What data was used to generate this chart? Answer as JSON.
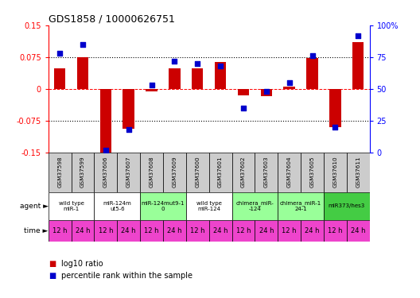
{
  "title": "GDS1858 / 10000626751",
  "samples": [
    "GSM37598",
    "GSM37599",
    "GSM37606",
    "GSM37607",
    "GSM37608",
    "GSM37609",
    "GSM37600",
    "GSM37601",
    "GSM37602",
    "GSM37603",
    "GSM37604",
    "GSM37605",
    "GSM37610",
    "GSM37611"
  ],
  "log10_ratio": [
    0.048,
    0.075,
    -0.155,
    -0.095,
    -0.005,
    0.048,
    0.048,
    0.063,
    -0.015,
    -0.018,
    0.005,
    0.072,
    -0.09,
    0.11
  ],
  "percentile_rank": [
    78,
    85,
    2,
    18,
    53,
    72,
    70,
    68,
    35,
    48,
    55,
    76,
    20,
    92
  ],
  "agent_groups": [
    {
      "label": "wild type\nmiR-1",
      "start": 0,
      "end": 2,
      "color": "#ffffff"
    },
    {
      "label": "miR-124m\nut5-6",
      "start": 2,
      "end": 4,
      "color": "#ffffff"
    },
    {
      "label": "miR-124mut9-1\n0",
      "start": 4,
      "end": 6,
      "color": "#99ff99"
    },
    {
      "label": "wild type\nmiR-124",
      "start": 6,
      "end": 8,
      "color": "#ffffff"
    },
    {
      "label": "chimera_miR-\n-124",
      "start": 8,
      "end": 10,
      "color": "#99ff99"
    },
    {
      "label": "chimera_miR-1\n24-1",
      "start": 10,
      "end": 12,
      "color": "#99ff99"
    },
    {
      "label": "miR373/hes3",
      "start": 12,
      "end": 14,
      "color": "#44cc44"
    }
  ],
  "bar_color": "#cc0000",
  "dot_color": "#0000cc",
  "ylim_left": [
    -0.15,
    0.15
  ],
  "ylim_right": [
    0,
    100
  ],
  "yticks_left": [
    -0.15,
    -0.075,
    0,
    0.075,
    0.15
  ],
  "yticks_right": [
    0,
    25,
    50,
    75,
    100
  ],
  "ytick_labels_left": [
    "-0.15",
    "-0.075",
    "0",
    "0.075",
    "0.15"
  ],
  "ytick_labels_right": [
    "0",
    "25",
    "50",
    "75",
    "100%"
  ],
  "dotted_lines": [
    -0.075,
    0,
    0.075
  ],
  "background_color": "#ffffff",
  "agent_row_bg": "#cccccc",
  "time_row_bg": "#cccccc",
  "agent_label": "agent",
  "time_label": "time",
  "legend_items": [
    {
      "color": "#cc0000",
      "label": "log10 ratio"
    },
    {
      "color": "#0000cc",
      "label": "percentile rank within the sample"
    }
  ]
}
